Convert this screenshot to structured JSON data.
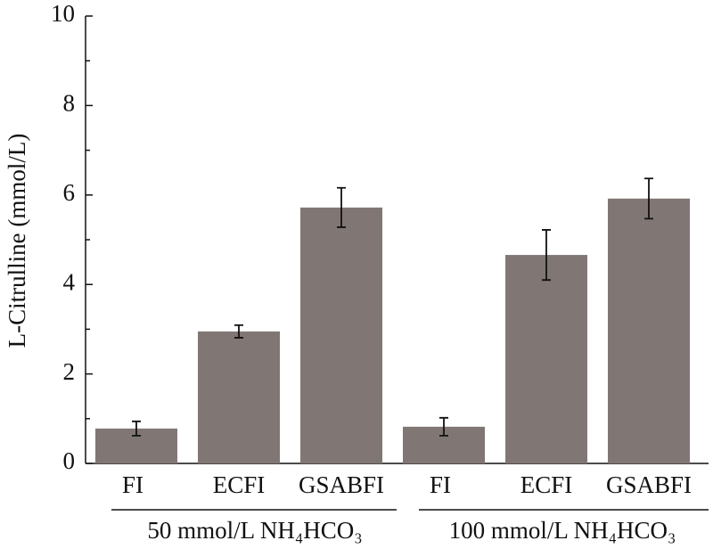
{
  "chart_data": {
    "type": "bar",
    "ylabel": "L-Citrulline (mmol/L)",
    "groups": [
      {
        "name": "50 mmol/L NH₄HCO₃",
        "categories": [
          "FI",
          "ECFI",
          "GSABFI"
        ],
        "values": [
          0.78,
          2.95,
          5.72
        ],
        "errors": [
          0.16,
          0.14,
          0.44
        ]
      },
      {
        "name": "100 mmol/L NH₄HCO₃",
        "categories": [
          "FI",
          "ECFI",
          "GSABFI"
        ],
        "values": [
          0.82,
          4.66,
          5.92
        ],
        "errors": [
          0.2,
          0.56,
          0.45
        ]
      }
    ],
    "color": "#807775",
    "ylim": [
      0,
      10
    ],
    "yticks": [
      0,
      2,
      4,
      6,
      8,
      10
    ],
    "minor_yticks": [
      1,
      3,
      5,
      7,
      9
    ]
  }
}
